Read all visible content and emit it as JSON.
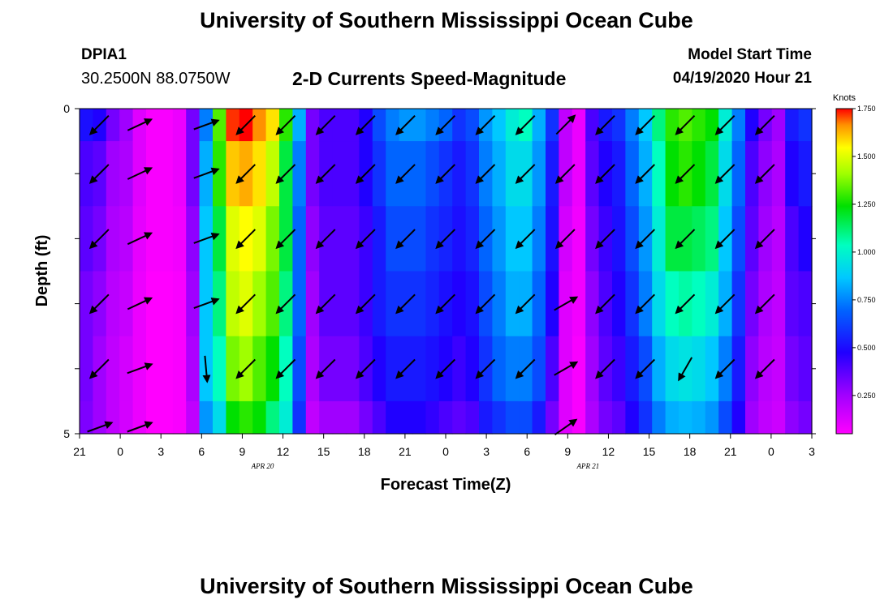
{
  "page": {
    "title_top": "University of Southern Mississippi Ocean Cube",
    "title_bottom": "University of Southern Mississippi Ocean Cube",
    "station": "DPIA1",
    "coords": "30.2500N 88.0750W",
    "subtitle": "2-D Currents Speed-Magnitude",
    "start_label": "Model Start Time",
    "start_value": "04/19/2020 Hour 21"
  },
  "chart_data": {
    "type": "heatmap",
    "title": "2-D Currents Speed-Magnitude",
    "xlabel": "Forecast Time(Z)",
    "ylabel": "Depth (ft)",
    "x_tick_labels": [
      "21",
      "0",
      "3",
      "6",
      "9",
      "12",
      "15",
      "18",
      "21",
      "0",
      "3",
      "6",
      "9",
      "12",
      "15",
      "18",
      "21",
      "0",
      "3"
    ],
    "x_date_labels": [
      {
        "label": "APR 20",
        "at_tick": 4.5
      },
      {
        "label": "APR 21",
        "at_tick": 12.5
      }
    ],
    "y_tick_labels": [
      "0",
      "5"
    ],
    "ylim": [
      0,
      5
    ],
    "colorbar": {
      "label": "Knots",
      "ticks": [
        "1.750",
        "1.500",
        "1.250",
        "1.000",
        "0.750",
        "0.500",
        "0.250"
      ],
      "range": [
        0.05,
        1.75
      ]
    },
    "time_hours": [
      0,
      1,
      2,
      3,
      4,
      5,
      6,
      7,
      8,
      9,
      10,
      11,
      12,
      13,
      14,
      15,
      16,
      17,
      18,
      19,
      20,
      21,
      22,
      23,
      24,
      25,
      26,
      27,
      28,
      29,
      30,
      31,
      32,
      33,
      34,
      35,
      36,
      37,
      38,
      39,
      40,
      41,
      42,
      43,
      44,
      45,
      46,
      47,
      48,
      49,
      50,
      51,
      52,
      53,
      54
    ],
    "depth_levels": [
      "0-0.5",
      "0.5-1.5",
      "1.5-2.5",
      "2.5-3.5",
      "3.5-4.5",
      "4.5-5"
    ],
    "speed_knots_by_hour_top_to_bottom": [
      [
        0.38,
        0.3,
        0.28,
        0.25,
        0.25,
        0.24
      ],
      [
        0.35,
        0.28,
        0.25,
        0.22,
        0.2,
        0.2
      ],
      [
        0.25,
        0.2,
        0.18,
        0.16,
        0.15,
        0.15
      ],
      [
        0.2,
        0.18,
        0.16,
        0.14,
        0.12,
        0.12
      ],
      [
        0.1,
        0.1,
        0.09,
        0.08,
        0.08,
        0.08
      ],
      [
        0.06,
        0.06,
        0.06,
        0.05,
        0.05,
        0.05
      ],
      [
        0.06,
        0.06,
        0.06,
        0.05,
        0.05,
        0.05
      ],
      [
        0.08,
        0.08,
        0.07,
        0.06,
        0.06,
        0.06
      ],
      [
        0.25,
        0.25,
        0.22,
        0.2,
        0.18,
        0.15
      ],
      [
        0.6,
        0.7,
        0.75,
        0.75,
        0.75,
        0.65
      ],
      [
        1.15,
        1.1,
        1.0,
        0.95,
        0.9,
        0.8
      ],
      [
        1.7,
        1.5,
        1.35,
        1.3,
        1.2,
        1.05
      ],
      [
        1.75,
        1.55,
        1.4,
        1.35,
        1.25,
        1.1
      ],
      [
        1.6,
        1.45,
        1.35,
        1.25,
        1.15,
        1.05
      ],
      [
        1.45,
        1.3,
        1.2,
        1.15,
        1.05,
        0.95
      ],
      [
        1.1,
        1.0,
        1.0,
        0.95,
        0.9,
        0.85
      ],
      [
        0.7,
        0.6,
        0.55,
        0.55,
        0.5,
        0.45
      ],
      [
        0.25,
        0.25,
        0.22,
        0.2,
        0.18,
        0.15
      ],
      [
        0.3,
        0.3,
        0.28,
        0.28,
        0.25,
        0.2
      ],
      [
        0.3,
        0.3,
        0.28,
        0.28,
        0.25,
        0.2
      ],
      [
        0.3,
        0.3,
        0.28,
        0.28,
        0.25,
        0.2
      ],
      [
        0.35,
        0.35,
        0.32,
        0.32,
        0.3,
        0.25
      ],
      [
        0.5,
        0.45,
        0.4,
        0.4,
        0.35,
        0.3
      ],
      [
        0.6,
        0.55,
        0.5,
        0.45,
        0.4,
        0.35
      ],
      [
        0.65,
        0.55,
        0.5,
        0.45,
        0.4,
        0.35
      ],
      [
        0.65,
        0.55,
        0.5,
        0.45,
        0.4,
        0.35
      ],
      [
        0.6,
        0.5,
        0.45,
        0.42,
        0.38,
        0.33
      ],
      [
        0.55,
        0.45,
        0.42,
        0.38,
        0.35,
        0.3
      ],
      [
        0.45,
        0.4,
        0.38,
        0.35,
        0.32,
        0.28
      ],
      [
        0.5,
        0.45,
        0.42,
        0.38,
        0.35,
        0.3
      ],
      [
        0.65,
        0.6,
        0.55,
        0.5,
        0.45,
        0.4
      ],
      [
        0.75,
        0.7,
        0.65,
        0.6,
        0.55,
        0.45
      ],
      [
        0.85,
        0.8,
        0.75,
        0.7,
        0.6,
        0.5
      ],
      [
        0.9,
        0.8,
        0.75,
        0.7,
        0.6,
        0.5
      ],
      [
        0.7,
        0.65,
        0.6,
        0.55,
        0.5,
        0.4
      ],
      [
        0.45,
        0.4,
        0.38,
        0.35,
        0.3,
        0.25
      ],
      [
        0.15,
        0.15,
        0.12,
        0.1,
        0.1,
        0.1
      ],
      [
        0.08,
        0.08,
        0.07,
        0.07,
        0.06,
        0.06
      ],
      [
        0.3,
        0.28,
        0.25,
        0.22,
        0.2,
        0.18
      ],
      [
        0.4,
        0.35,
        0.32,
        0.3,
        0.28,
        0.25
      ],
      [
        0.45,
        0.4,
        0.38,
        0.35,
        0.32,
        0.28
      ],
      [
        0.6,
        0.55,
        0.5,
        0.45,
        0.4,
        0.35
      ],
      [
        0.75,
        0.7,
        0.65,
        0.6,
        0.5,
        0.45
      ],
      [
        0.95,
        0.9,
        0.85,
        0.8,
        0.7,
        0.6
      ],
      [
        1.1,
        1.05,
        1.0,
        0.9,
        0.8,
        0.7
      ],
      [
        1.15,
        1.1,
        1.0,
        0.92,
        0.82,
        0.72
      ],
      [
        1.1,
        1.05,
        0.98,
        0.9,
        0.8,
        0.7
      ],
      [
        1.05,
        1.0,
        0.95,
        0.85,
        0.75,
        0.65
      ],
      [
        0.85,
        0.8,
        0.75,
        0.7,
        0.6,
        0.5
      ],
      [
        0.6,
        0.55,
        0.5,
        0.45,
        0.4,
        0.35
      ],
      [
        0.35,
        0.3,
        0.28,
        0.25,
        0.22,
        0.2
      ],
      [
        0.25,
        0.22,
        0.2,
        0.18,
        0.16,
        0.15
      ],
      [
        0.2,
        0.18,
        0.16,
        0.15,
        0.14,
        0.13
      ],
      [
        0.4,
        0.35,
        0.3,
        0.28,
        0.25,
        0.22
      ],
      [
        0.45,
        0.4,
        0.35,
        0.3,
        0.28,
        0.25
      ]
    ],
    "vector_columns_hours": [
      1,
      4,
      9,
      12,
      15,
      18,
      21,
      24,
      27,
      30,
      33,
      36,
      39,
      42,
      45,
      48,
      51
    ],
    "vector_directions_deg_top_to_bottom": [
      [
        135,
        -25,
        -20,
        135,
        135,
        135,
        135,
        135,
        135,
        135,
        135,
        -45,
        135,
        135,
        135,
        135,
        135
      ],
      [
        135,
        -25,
        -20,
        135,
        135,
        135,
        135,
        135,
        135,
        135,
        135,
        135,
        135,
        135,
        135,
        135,
        135
      ],
      [
        135,
        -25,
        -20,
        135,
        135,
        135,
        135,
        135,
        135,
        135,
        135,
        135,
        135,
        135,
        135,
        135,
        135
      ],
      [
        135,
        -25,
        -20,
        135,
        135,
        135,
        135,
        135,
        135,
        135,
        135,
        -30,
        135,
        135,
        135,
        135,
        135
      ],
      [
        135,
        -20,
        85,
        135,
        135,
        135,
        135,
        135,
        135,
        135,
        135,
        -30,
        135,
        135,
        120,
        135,
        135
      ],
      [
        -20,
        -20,
        null,
        null,
        null,
        null,
        null,
        null,
        null,
        null,
        null,
        -35,
        null,
        null,
        null,
        null,
        null
      ]
    ]
  }
}
